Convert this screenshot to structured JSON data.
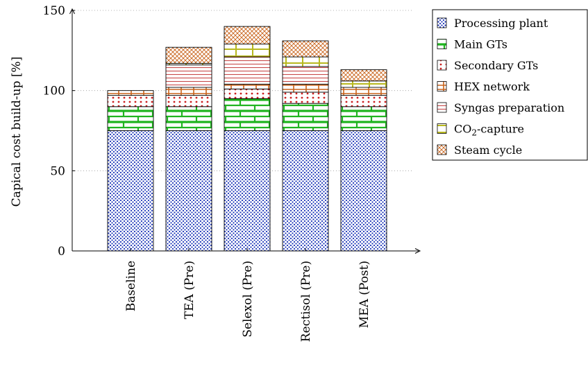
{
  "chart_data": {
    "type": "bar",
    "stacked": true,
    "title": "",
    "xlabel": "",
    "ylabel": "Capical cost build-up [%]",
    "ylim": [
      0,
      150
    ],
    "yticks": [
      0,
      50,
      100,
      150
    ],
    "grid": "horizontal dotted",
    "legend_position": "right",
    "categories": [
      "Baseline",
      "TEA (Pre)",
      "Selexol (Pre)",
      "Rectisol (Pre)",
      "MEA (Post)"
    ],
    "series": [
      {
        "name": "Processing plant",
        "pattern": "dots",
        "color": "#1a33b8",
        "values": [
          75,
          75,
          75,
          75,
          75
        ]
      },
      {
        "name": "Main GTs",
        "pattern": "bricks",
        "color": "#1fb41f",
        "values": [
          15,
          15,
          20,
          17,
          15
        ]
      },
      {
        "name": "Secondary GTs",
        "pattern": "red-dots",
        "color": "#cc1f1f",
        "values": [
          7,
          7,
          6,
          7,
          7
        ]
      },
      {
        "name": "HEX network",
        "pattern": "hex",
        "color": "#c8621a",
        "values": [
          3,
          5,
          3,
          5,
          5
        ]
      },
      {
        "name": "Syngas preparation",
        "pattern": "hlines",
        "color": "#c84a4a",
        "values": [
          0,
          14,
          17,
          11,
          0
        ]
      },
      {
        "name": "CO2-capture",
        "pattern": "co2",
        "color": "#b8b81f",
        "values": [
          0,
          1,
          8,
          6,
          4
        ]
      },
      {
        "name": "Steam cycle",
        "pattern": "crosshatch",
        "color": "#c8621a",
        "values": [
          0,
          10,
          11,
          10,
          7
        ]
      }
    ]
  },
  "legend": {
    "items": [
      {
        "label": "Processing plant"
      },
      {
        "label": "Main GTs"
      },
      {
        "label": "Secondary GTs"
      },
      {
        "label": "HEX network"
      },
      {
        "label": "Syngas preparation"
      },
      {
        "label_main": "CO",
        "label_sub": "2",
        "label_rest": "-capture"
      },
      {
        "label": "Steam cycle"
      }
    ]
  }
}
